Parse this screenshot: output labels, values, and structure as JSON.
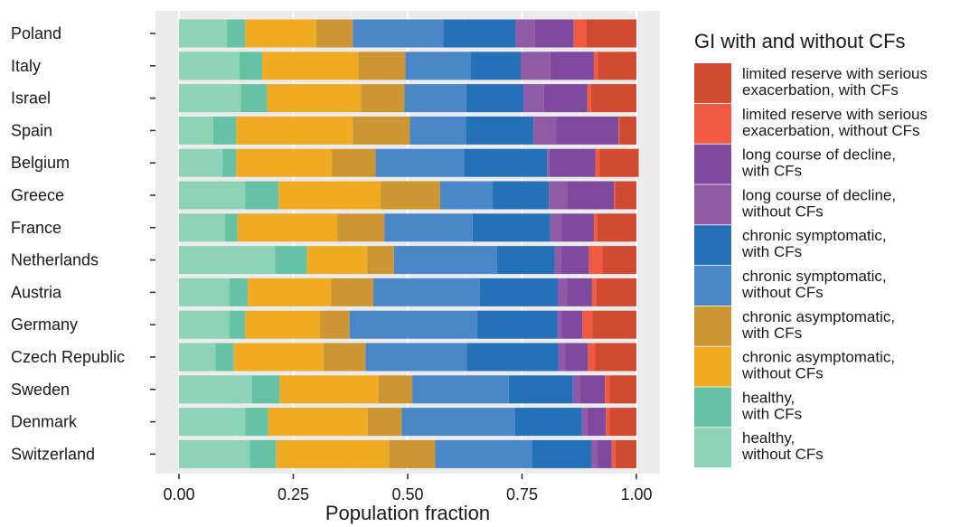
{
  "chart_data": {
    "type": "bar",
    "orientation": "horizontal",
    "stacked": true,
    "xlabel": "Population fraction",
    "xlim": [
      0,
      1
    ],
    "xticks": [
      "0.00",
      "0.25",
      "0.50",
      "0.75",
      "1.00"
    ],
    "grid": true,
    "legend_position": "right",
    "legend_title": "GI with and without CFs",
    "categories": [
      "Poland",
      "Italy",
      "Israel",
      "Spain",
      "Belgium",
      "Greece",
      "France",
      "Netherlands",
      "Austria",
      "Germany",
      "Czech Republic",
      "Sweden",
      "Denmark",
      "Switzerland"
    ],
    "series": [
      {
        "name": "healthy, without CFs",
        "legend_lines": [
          "healthy,",
          "without CFs"
        ],
        "color": "#8dd3b9",
        "values": [
          0.105,
          0.132,
          0.135,
          0.075,
          0.095,
          0.145,
          0.1,
          0.21,
          0.11,
          0.11,
          0.08,
          0.16,
          0.145,
          0.155
        ]
      },
      {
        "name": "healthy, with CFs",
        "legend_lines": [
          "healthy,",
          "with CFs"
        ],
        "color": "#66c2a5",
        "values": [
          0.04,
          0.05,
          0.058,
          0.05,
          0.03,
          0.073,
          0.028,
          0.07,
          0.04,
          0.035,
          0.04,
          0.06,
          0.05,
          0.057
        ]
      },
      {
        "name": "chronic asymptomatic, without CFs",
        "legend_lines": [
          "chronic asymptomatic,",
          "without CFs"
        ],
        "color": "#f0ab24",
        "values": [
          0.155,
          0.21,
          0.205,
          0.255,
          0.21,
          0.223,
          0.218,
          0.132,
          0.183,
          0.163,
          0.196,
          0.216,
          0.218,
          0.247
        ]
      },
      {
        "name": "chronic asymptomatic, with CFs",
        "legend_lines": [
          "chronic asymptomatic,",
          "with CFs"
        ],
        "color": "#cc9633",
        "values": [
          0.08,
          0.103,
          0.095,
          0.125,
          0.095,
          0.13,
          0.103,
          0.058,
          0.092,
          0.065,
          0.092,
          0.074,
          0.074,
          0.101
        ]
      },
      {
        "name": "chronic symptomatic, without CFs",
        "legend_lines": [
          "chronic symptomatic,",
          "without CFs"
        ],
        "color": "#4a87c8",
        "values": [
          0.198,
          0.142,
          0.135,
          0.122,
          0.193,
          0.114,
          0.193,
          0.225,
          0.233,
          0.279,
          0.221,
          0.211,
          0.248,
          0.212
        ]
      },
      {
        "name": "chronic symptomatic, with CFs",
        "legend_lines": [
          "chronic symptomatic,",
          "with CFs"
        ],
        "color": "#2471b8",
        "values": [
          0.158,
          0.11,
          0.125,
          0.148,
          0.182,
          0.124,
          0.17,
          0.126,
          0.17,
          0.175,
          0.2,
          0.14,
          0.146,
          0.13
        ]
      },
      {
        "name": "long course of decline, without CFs",
        "legend_lines": [
          "long course of decline,",
          "without CFs"
        ],
        "color": "#8f5ba8",
        "values": [
          0.042,
          0.065,
          0.045,
          0.05,
          0.005,
          0.04,
          0.025,
          0.015,
          0.02,
          0.01,
          0.015,
          0.015,
          0.012,
          0.014
        ]
      },
      {
        "name": "long course of decline, with CFs",
        "legend_lines": [
          "long course of decline,",
          "with CFs"
        ],
        "color": "#7e4a9e",
        "values": [
          0.085,
          0.095,
          0.095,
          0.136,
          0.1,
          0.102,
          0.07,
          0.06,
          0.055,
          0.045,
          0.05,
          0.055,
          0.04,
          0.03
        ]
      },
      {
        "name": "limited reserve with serious exacerbation, without CFs",
        "legend_lines": [
          "limited reserve with serious",
          "exacerbation, without CFs"
        ],
        "color": "#f05a40",
        "values": [
          0.027,
          0.01,
          0.008,
          0.002,
          0.01,
          0.002,
          0.008,
          0.03,
          0.01,
          0.022,
          0.016,
          0.01,
          0.008,
          0.008
        ]
      },
      {
        "name": "limited reserve with serious exacerbation, with CFs",
        "legend_lines": [
          "limited reserve with serious",
          "exacerbation, with CFs"
        ],
        "color": "#d04a32",
        "values": [
          0.11,
          0.083,
          0.099,
          0.037,
          0.085,
          0.047,
          0.085,
          0.074,
          0.087,
          0.096,
          0.09,
          0.059,
          0.059,
          0.046
        ]
      }
    ]
  }
}
